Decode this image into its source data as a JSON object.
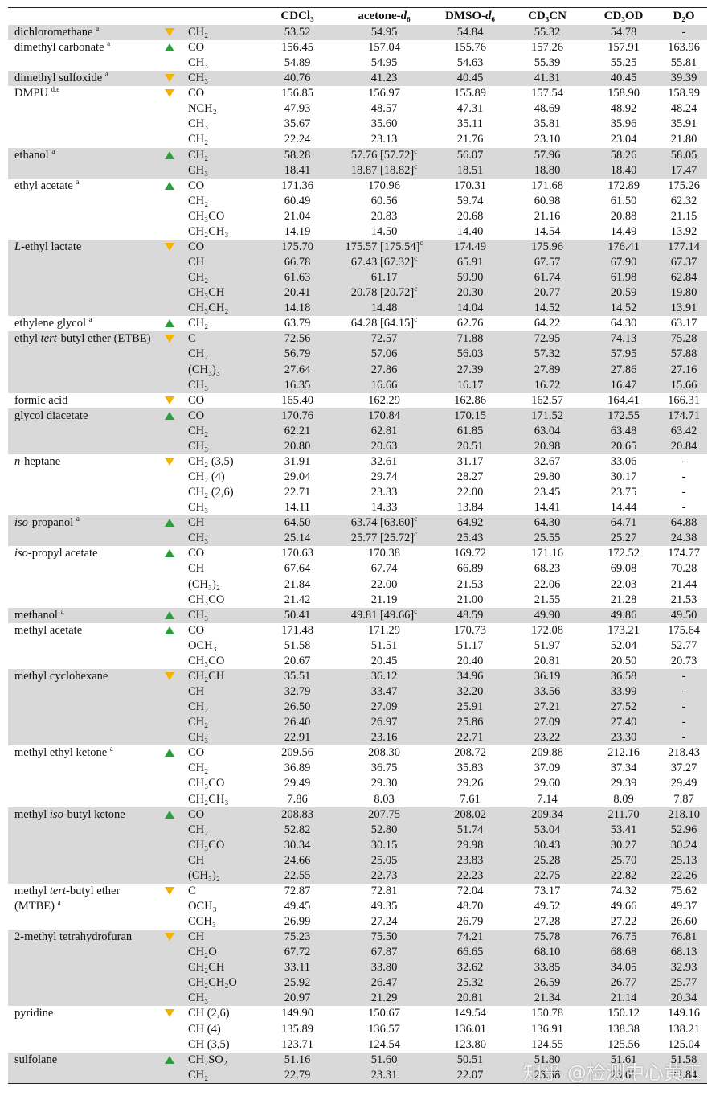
{
  "headers": [
    "CDCl₃",
    "acetone-d₆",
    "DMSO-d₆",
    "CD₃CN",
    "CD₃OD",
    "D₂O"
  ],
  "compounds": [
    {
      "name": "dichloromethane",
      "note": "a",
      "trend": "down",
      "rows": [
        [
          "CH₂",
          "53.52",
          "54.95",
          "54.84",
          "55.32",
          "54.78",
          "-"
        ]
      ]
    },
    {
      "name": "dimethyl carbonate",
      "note": "a",
      "trend": "up",
      "rows": [
        [
          "CO",
          "156.45",
          "157.04",
          "155.76",
          "157.26",
          "157.91",
          "163.96"
        ],
        [
          "CH₃",
          "54.89",
          "54.95",
          "54.63",
          "55.39",
          "55.25",
          "55.81"
        ]
      ]
    },
    {
      "name": "dimethyl sulfoxide",
      "note": "a",
      "trend": "down",
      "rows": [
        [
          "CH₃",
          "40.76",
          "41.23",
          "40.45",
          "41.31",
          "40.45",
          "39.39"
        ]
      ]
    },
    {
      "name": "DMPU",
      "note": "d,e",
      "trend": "down",
      "rows": [
        [
          "CO",
          "156.85",
          "156.97",
          "155.89",
          "157.54",
          "158.90",
          "158.99"
        ],
        [
          "NCH₂",
          "47.93",
          "48.57",
          "47.31",
          "48.69",
          "48.92",
          "48.24"
        ],
        [
          "CH₃",
          "35.67",
          "35.60",
          "35.11",
          "35.81",
          "35.96",
          "35.91"
        ],
        [
          "CH₂",
          "22.24",
          "23.13",
          "21.76",
          "23.10",
          "23.04",
          "21.80"
        ]
      ]
    },
    {
      "name": "ethanol",
      "note": "a",
      "trend": "up",
      "rows": [
        [
          "CH₂",
          "58.28",
          {
            "text": "57.76 [57.72]",
            "note": "c"
          },
          "56.07",
          "57.96",
          "58.26",
          "58.05"
        ],
        [
          "CH₃",
          "18.41",
          {
            "text": "18.87 [18.82]",
            "note": "c"
          },
          "18.51",
          "18.80",
          "18.40",
          "17.47"
        ]
      ]
    },
    {
      "name": "ethyl acetate",
      "note": "a",
      "trend": "up",
      "rows": [
        [
          "CO",
          "171.36",
          "170.96",
          "170.31",
          "171.68",
          "172.89",
          "175.26"
        ],
        [
          "CH₂",
          "60.49",
          "60.56",
          "59.74",
          "60.98",
          "61.50",
          "62.32"
        ],
        [
          "CH₃CO",
          "21.04",
          "20.83",
          "20.68",
          "21.16",
          "20.88",
          "21.15"
        ],
        [
          "CH₂CH₃",
          "14.19",
          "14.50",
          "14.40",
          "14.54",
          "14.49",
          "13.92"
        ]
      ]
    },
    {
      "name": "L-ethyl lactate",
      "trend": "down",
      "rows": [
        [
          "CO",
          "175.70",
          {
            "text": "175.57 [175.54]",
            "note": "c"
          },
          "174.49",
          "175.96",
          "176.41",
          "177.14"
        ],
        [
          "CH",
          "66.78",
          {
            "text": "67.43 [67.32]",
            "note": "c"
          },
          "65.91",
          "67.57",
          "67.90",
          "67.37"
        ],
        [
          "CH₂",
          "61.63",
          "61.17",
          "59.90",
          "61.74",
          "61.98",
          "62.84"
        ],
        [
          "CH₃CH",
          "20.41",
          {
            "text": "20.78 [20.72]",
            "note": "c"
          },
          "20.30",
          "20.77",
          "20.59",
          "19.80"
        ],
        [
          "CH₃CH₂",
          "14.18",
          "14.48",
          "14.04",
          "14.52",
          "14.52",
          "13.91"
        ]
      ]
    },
    {
      "name": "ethylene glycol",
      "note": "a",
      "trend": "up",
      "rows": [
        [
          "CH₂",
          "63.79",
          {
            "text": "64.28 [64.15]",
            "note": "c"
          },
          "62.76",
          "64.22",
          "64.30",
          "63.17"
        ]
      ]
    },
    {
      "name": "ethyl tert-butyl ether (ETBE)",
      "trend": "down",
      "rows": [
        [
          "C",
          "72.56",
          "72.57",
          "71.88",
          "72.95",
          "74.13",
          "75.28"
        ],
        [
          "CH₂",
          "56.79",
          "57.06",
          "56.03",
          "57.32",
          "57.95",
          "57.88"
        ],
        [
          "(CH₃)₃",
          "27.64",
          "27.86",
          "27.39",
          "27.89",
          "27.86",
          "27.16"
        ],
        [
          "CH₃",
          "16.35",
          "16.66",
          "16.17",
          "16.72",
          "16.47",
          "15.66"
        ]
      ]
    },
    {
      "name": "formic acid",
      "trend": "down",
      "rows": [
        [
          "CO",
          "165.40",
          "162.29",
          "162.86",
          "162.57",
          "164.41",
          "166.31"
        ]
      ]
    },
    {
      "name": "glycol diacetate",
      "trend": "up",
      "rows": [
        [
          "CO",
          "170.76",
          "170.84",
          "170.15",
          "171.52",
          "172.55",
          "174.71"
        ],
        [
          "CH₂",
          "62.21",
          "62.81",
          "61.85",
          "63.04",
          "63.48",
          "63.42"
        ],
        [
          "CH₃",
          "20.80",
          "20.63",
          "20.51",
          "20.98",
          "20.65",
          "20.84"
        ]
      ]
    },
    {
      "name": "n-heptane",
      "trend": "down",
      "rows": [
        [
          "CH₂ (3,5)",
          "31.91",
          "32.61",
          "31.17",
          "32.67",
          "33.06",
          "-"
        ],
        [
          "CH₂ (4)",
          "29.04",
          "29.74",
          "28.27",
          "29.80",
          "30.17",
          "-"
        ],
        [
          "CH₂ (2,6)",
          "22.71",
          "23.33",
          "22.00",
          "23.45",
          "23.75",
          "-"
        ],
        [
          "CH₃",
          "14.11",
          "14.33",
          "13.84",
          "14.41",
          "14.44",
          "-"
        ]
      ]
    },
    {
      "name": "iso-propanol",
      "note": "a",
      "trend": "up",
      "rows": [
        [
          "CH",
          "64.50",
          {
            "text": "63.74 [63.60]",
            "note": "c"
          },
          "64.92",
          "64.30",
          "64.71",
          "64.88"
        ],
        [
          "CH₃",
          "25.14",
          {
            "text": "25.77 [25.72]",
            "note": "c"
          },
          "25.43",
          "25.55",
          "25.27",
          "24.38"
        ]
      ]
    },
    {
      "name": "iso-propyl acetate",
      "trend": "up",
      "rows": [
        [
          "CO",
          "170.63",
          "170.38",
          "169.72",
          "171.16",
          "172.52",
          "174.77"
        ],
        [
          "CH",
          "67.64",
          "67.74",
          "66.89",
          "68.23",
          "69.08",
          "70.28"
        ],
        [
          "(CH₃)₂",
          "21.84",
          "22.00",
          "21.53",
          "22.06",
          "22.03",
          "21.44"
        ],
        [
          "CH₃CO",
          "21.42",
          "21.19",
          "21.00",
          "21.55",
          "21.28",
          "21.53"
        ]
      ]
    },
    {
      "name": "methanol",
      "note": "a",
      "trend": "up",
      "rows": [
        [
          "CH₃",
          "50.41",
          {
            "text": "49.81 [49.66]",
            "note": "c"
          },
          "48.59",
          "49.90",
          "49.86",
          "49.50"
        ]
      ]
    },
    {
      "name": "methyl acetate",
      "trend": "up",
      "rows": [
        [
          "CO",
          "171.48",
          "171.29",
          "170.73",
          "172.08",
          "173.21",
          "175.64"
        ],
        [
          "OCH₃",
          "51.58",
          "51.51",
          "51.17",
          "51.97",
          "52.04",
          "52.77"
        ],
        [
          "CH₃CO",
          "20.67",
          "20.45",
          "20.40",
          "20.81",
          "20.50",
          "20.73"
        ]
      ]
    },
    {
      "name": "methyl cyclohexane",
      "trend": "down",
      "rows": [
        [
          "CH₂CH",
          "35.51",
          "36.12",
          "34.96",
          "36.19",
          "36.58",
          "-"
        ],
        [
          "CH",
          "32.79",
          "33.47",
          "32.20",
          "33.56",
          "33.99",
          "-"
        ],
        [
          "CH₂",
          "26.50",
          "27.09",
          "25.91",
          "27.21",
          "27.52",
          "-"
        ],
        [
          "CH₂",
          "26.40",
          "26.97",
          "25.86",
          "27.09",
          "27.40",
          "-"
        ],
        [
          "CH₃",
          "22.91",
          "23.16",
          "22.71",
          "23.22",
          "23.30",
          "-"
        ]
      ]
    },
    {
      "name": "methyl ethyl ketone",
      "note": "a",
      "trend": "up",
      "rows": [
        [
          "CO",
          "209.56",
          "208.30",
          "208.72",
          "209.88",
          "212.16",
          "218.43"
        ],
        [
          "CH₂",
          "36.89",
          "36.75",
          "35.83",
          "37.09",
          "37.34",
          "37.27"
        ],
        [
          "CH₃CO",
          "29.49",
          "29.30",
          "29.26",
          "29.60",
          "29.39",
          "29.49"
        ],
        [
          "CH₂CH₃",
          "7.86",
          "8.03",
          "7.61",
          "7.14",
          "8.09",
          "7.87"
        ]
      ]
    },
    {
      "name": "methyl iso-butyl ketone",
      "trend": "up",
      "rows": [
        [
          "CO",
          "208.83",
          "207.75",
          "208.02",
          "209.34",
          "211.70",
          "218.10"
        ],
        [
          "CH₂",
          "52.82",
          "52.80",
          "51.74",
          "53.04",
          "53.41",
          "52.96"
        ],
        [
          "CH₃CO",
          "30.34",
          "30.15",
          "29.98",
          "30.43",
          "30.27",
          "30.24"
        ],
        [
          "CH",
          "24.66",
          "25.05",
          "23.83",
          "25.28",
          "25.70",
          "25.13"
        ],
        [
          "(CH₃)₂",
          "22.55",
          "22.73",
          "22.23",
          "22.75",
          "22.82",
          "22.26"
        ]
      ]
    },
    {
      "name": "methyl tert-butyl ether (MTBE)",
      "note": "a",
      "trend": "down",
      "rows": [
        [
          "C",
          "72.87",
          "72.81",
          "72.04",
          "73.17",
          "74.32",
          "75.62"
        ],
        [
          "OCH₃",
          "49.45",
          "49.35",
          "48.70",
          "49.52",
          "49.66",
          "49.37"
        ],
        [
          "CCH₃",
          "26.99",
          "27.24",
          "26.79",
          "27.28",
          "27.22",
          "26.60"
        ]
      ]
    },
    {
      "name": "2-methyl tetrahydrofuran",
      "trend": "down",
      "rows": [
        [
          "CH",
          "75.23",
          "75.50",
          "74.21",
          "75.78",
          "76.75",
          "76.81"
        ],
        [
          "CH₂O",
          "67.72",
          "67.87",
          "66.65",
          "68.10",
          "68.68",
          "68.13"
        ],
        [
          "CH₂CH",
          "33.11",
          "33.80",
          "32.62",
          "33.85",
          "34.05",
          "32.93"
        ],
        [
          "CH₂CH₂O",
          "25.92",
          "26.47",
          "25.32",
          "26.59",
          "26.77",
          "25.77"
        ],
        [
          "CH₃",
          "20.97",
          "21.29",
          "20.81",
          "21.34",
          "21.14",
          "20.34"
        ]
      ]
    },
    {
      "name": "pyridine",
      "trend": "down",
      "rows": [
        [
          "CH (2,6)",
          "149.90",
          "150.67",
          "149.54",
          "150.78",
          "150.12",
          "149.16"
        ],
        [
          "CH (4)",
          "135.89",
          "136.57",
          "136.01",
          "136.91",
          "138.38",
          "138.21"
        ],
        [
          "CH (3,5)",
          "123.71",
          "124.54",
          "123.80",
          "124.55",
          "125.56",
          "125.04"
        ]
      ]
    },
    {
      "name": "sulfolane",
      "trend": "up",
      "rows": [
        [
          "CH₂SO₂",
          "51.16",
          "51.60",
          "50.51",
          "51.80",
          "51.61",
          "51.58"
        ],
        [
          "CH₂",
          "22.79",
          "23.31",
          "22.07",
          "23.38",
          "23.68",
          "22.84"
        ]
      ]
    }
  ],
  "watermark": "知乎 @检测中心黄工"
}
